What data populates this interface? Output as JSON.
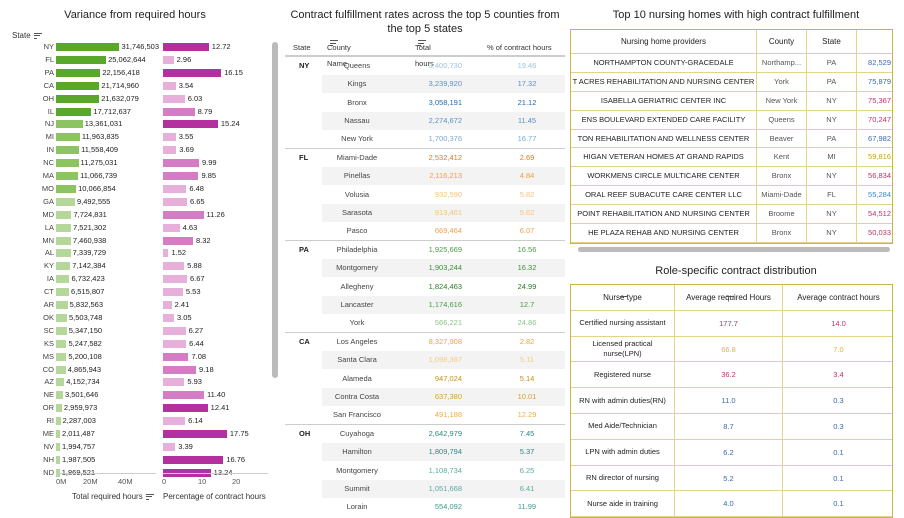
{
  "left": {
    "title": "Variance from required hours",
    "state_header": "State",
    "axis1_ticks": [
      "0M",
      "20M",
      "40M"
    ],
    "axis2_ticks": [
      "0",
      "10",
      "20"
    ],
    "axis1_title": "Total required hours",
    "axis2_title": "Percentage of contract hours",
    "rows": [
      {
        "state": "NY",
        "hours": "31,746,503",
        "pct": "12.72",
        "h": 31746503,
        "p": 12.72
      },
      {
        "state": "FL",
        "hours": "25,062,644",
        "pct": "2.96",
        "h": 25062644,
        "p": 2.96
      },
      {
        "state": "PA",
        "hours": "22,156,418",
        "pct": "16.15",
        "h": 22156418,
        "p": 16.15
      },
      {
        "state": "CA",
        "hours": "21,714,960",
        "pct": "3.54",
        "h": 21714960,
        "p": 3.54
      },
      {
        "state": "OH",
        "hours": "21,632,079",
        "pct": "6.03",
        "h": 21632079,
        "p": 6.03
      },
      {
        "state": "IL",
        "hours": "17,712,637",
        "pct": "8.79",
        "h": 17712637,
        "p": 8.79
      },
      {
        "state": "NJ",
        "hours": "13,361,031",
        "pct": "15.24",
        "h": 13361031,
        "p": 15.24
      },
      {
        "state": "MI",
        "hours": "11,963,835",
        "pct": "3.55",
        "h": 11963835,
        "p": 3.55
      },
      {
        "state": "IN",
        "hours": "11,558,409",
        "pct": "3.69",
        "h": 11558409,
        "p": 3.69
      },
      {
        "state": "NC",
        "hours": "11,275,031",
        "pct": "9.99",
        "h": 11275031,
        "p": 9.99
      },
      {
        "state": "MA",
        "hours": "11,066,739",
        "pct": "9.85",
        "h": 11066739,
        "p": 9.85
      },
      {
        "state": "MO",
        "hours": "10,066,854",
        "pct": "6.48",
        "h": 10066854,
        "p": 6.48
      },
      {
        "state": "GA",
        "hours": "9,492,555",
        "pct": "6.65",
        "h": 9492555,
        "p": 6.65
      },
      {
        "state": "MD",
        "hours": "7,724,831",
        "pct": "11.26",
        "h": 7724831,
        "p": 11.26
      },
      {
        "state": "LA",
        "hours": "7,521,302",
        "pct": "4.63",
        "h": 7521302,
        "p": 4.63
      },
      {
        "state": "MN",
        "hours": "7,460,938",
        "pct": "8.32",
        "h": 7460938,
        "p": 8.32
      },
      {
        "state": "AL",
        "hours": "7,339,729",
        "pct": "1.52",
        "h": 7339729,
        "p": 1.52
      },
      {
        "state": "KY",
        "hours": "7,142,384",
        "pct": "5.88",
        "h": 7142384,
        "p": 5.88
      },
      {
        "state": "IA",
        "hours": "6,732,423",
        "pct": "6.67",
        "h": 6732423,
        "p": 6.67
      },
      {
        "state": "CT",
        "hours": "6,515,807",
        "pct": "5.53",
        "h": 6515807,
        "p": 5.53
      },
      {
        "state": "AR",
        "hours": "5,832,563",
        "pct": "2.41",
        "h": 5832563,
        "p": 2.41
      },
      {
        "state": "OK",
        "hours": "5,503,748",
        "pct": "3.05",
        "h": 5503748,
        "p": 3.05
      },
      {
        "state": "SC",
        "hours": "5,347,150",
        "pct": "6.27",
        "h": 5347150,
        "p": 6.27
      },
      {
        "state": "KS",
        "hours": "5,247,582",
        "pct": "6.44",
        "h": 5247582,
        "p": 6.44
      },
      {
        "state": "MS",
        "hours": "5,200,108",
        "pct": "7.08",
        "h": 5200108,
        "p": 7.08
      },
      {
        "state": "CO",
        "hours": "4,865,943",
        "pct": "9.18",
        "h": 4865943,
        "p": 9.18
      },
      {
        "state": "AZ",
        "hours": "4,152,734",
        "pct": "5.93",
        "h": 4152734,
        "p": 5.93
      },
      {
        "state": "NE",
        "hours": "3,501,646",
        "pct": "11.40",
        "h": 3501646,
        "p": 11.4
      },
      {
        "state": "OR",
        "hours": "2,959,973",
        "pct": "12.41",
        "h": 2959973,
        "p": 12.41
      },
      {
        "state": "RI",
        "hours": "2,287,003",
        "pct": "6.14",
        "h": 2287003,
        "p": 6.14
      },
      {
        "state": "ME",
        "hours": "2,011,487",
        "pct": "17.75",
        "h": 2011487,
        "p": 17.75
      },
      {
        "state": "NV",
        "hours": "1,994,757",
        "pct": "3.39",
        "h": 1994757,
        "p": 3.39
      },
      {
        "state": "NH",
        "hours": "1,987,505",
        "pct": "16.76",
        "h": 1987505,
        "p": 16.76
      },
      {
        "state": "ND",
        "hours": "1,869,521",
        "pct": "13.24",
        "h": 1869521,
        "p": 13.24
      }
    ]
  },
  "mid": {
    "title": "Contract fulfillment rates across the top 5 counties from the top 5 states",
    "headers": {
      "state": "State",
      "county": "County Name",
      "total": "Total hours",
      "pct": "% of contract hours"
    },
    "groups": [
      {
        "state": "NY",
        "rows": [
          {
            "county": "Queens",
            "total": "3,400,730",
            "pct": "19.46",
            "color": "#9cc4e0"
          },
          {
            "county": "Kings",
            "total": "3,239,920",
            "pct": "17.32",
            "color": "#5b8fc0"
          },
          {
            "county": "Bronx",
            "total": "3,058,191",
            "pct": "21.12",
            "color": "#2b6aa8"
          },
          {
            "county": "Nassau",
            "total": "2,274,672",
            "pct": "11.45",
            "color": "#5b8fc0"
          },
          {
            "county": "New York",
            "total": "1,700,376",
            "pct": "16.77",
            "color": "#7aaad2"
          }
        ]
      },
      {
        "state": "FL",
        "rows": [
          {
            "county": "Miami-Dade",
            "total": "2,532,412",
            "pct": "2.69",
            "color": "#e07a22"
          },
          {
            "county": "Pinellas",
            "total": "2,116,213",
            "pct": "4.84",
            "color": "#f0a040"
          },
          {
            "county": "Volusia",
            "total": "932,590",
            "pct": "5.82",
            "color": "#f6c27a"
          },
          {
            "county": "Sarasota",
            "total": "913,401",
            "pct": "5.62",
            "color": "#f6c27a"
          },
          {
            "county": "Pasco",
            "total": "669,464",
            "pct": "6.07",
            "color": "#eba050"
          }
        ]
      },
      {
        "state": "PA",
        "rows": [
          {
            "county": "Philadelphia",
            "total": "1,925,669",
            "pct": "16.56",
            "color": "#4a9a48"
          },
          {
            "county": "Montgomery",
            "total": "1,903,244",
            "pct": "16.32",
            "color": "#3f8f3d"
          },
          {
            "county": "Allegheny",
            "total": "1,824,463",
            "pct": "24.99",
            "color": "#2a7a2a"
          },
          {
            "county": "Lancaster",
            "total": "1,174,616",
            "pct": "12.7",
            "color": "#4a9a48"
          },
          {
            "county": "York",
            "total": "566,221",
            "pct": "24.86",
            "color": "#8bc48a"
          }
        ]
      },
      {
        "state": "CA",
        "rows": [
          {
            "county": "Los Angeles",
            "total": "8,327,908",
            "pct": "2.82",
            "color": "#e8a838"
          },
          {
            "county": "Santa Clara",
            "total": "1,098,367",
            "pct": "5.11",
            "color": "#f3cc80"
          },
          {
            "county": "Alameda",
            "total": "947,024",
            "pct": "5.14",
            "color": "#c8901a"
          },
          {
            "county": "Contra Costa",
            "total": "637,380",
            "pct": "10.01",
            "color": "#d9a030"
          },
          {
            "county": "San Francisco",
            "total": "491,188",
            "pct": "12.29",
            "color": "#e8b040"
          }
        ]
      },
      {
        "state": "OH",
        "rows": [
          {
            "county": "Cuyahoga",
            "total": "2,642,979",
            "pct": "7.45",
            "color": "#2a8a82"
          },
          {
            "county": "Hamilton",
            "total": "1,809,794",
            "pct": "5.37",
            "color": "#2a8a82"
          },
          {
            "county": "Montgomery",
            "total": "1,108,734",
            "pct": "6.25",
            "color": "#5aaaa2"
          },
          {
            "county": "Summit",
            "total": "1,051,668",
            "pct": "6.41",
            "color": "#5aaaa2"
          },
          {
            "county": "Lorain",
            "total": "554,092",
            "pct": "11.99",
            "color": "#3a9a92"
          }
        ]
      }
    ]
  },
  "rt": {
    "title": "Top 10 nursing homes with high contract fulfillment",
    "headers": {
      "provider": "Nursing home providers",
      "county": "County",
      "state": "State"
    },
    "rows": [
      {
        "provider": "NORTHAMPTON COUNTY-GRACEDALE",
        "county": "Northamp...",
        "state": "PA",
        "val": "82,529",
        "color": "#3a6aa8"
      },
      {
        "provider": "T ACRES REHABILITATION AND NURSING CENTER",
        "county": "York",
        "state": "PA",
        "val": "75,879",
        "color": "#3a6aa8"
      },
      {
        "provider": "ISABELLA GERIATRIC CENTER INC",
        "county": "New York",
        "state": "NY",
        "val": "75,367",
        "color": "#c0306a"
      },
      {
        "provider": "ENS BOULEVARD EXTENDED CARE FACILITY",
        "county": "Queens",
        "state": "NY",
        "val": "70,247",
        "color": "#c0306a"
      },
      {
        "provider": "TON REHABILITATION AND WELLNESS CENTER",
        "county": "Beaver",
        "state": "PA",
        "val": "67,982",
        "color": "#3a6aa8"
      },
      {
        "provider": "HIGAN VETERAN HOMES AT GRAND RAPIDS",
        "county": "Kent",
        "state": "MI",
        "val": "59,816",
        "color": "#c8a020"
      },
      {
        "provider": "WORKMENS CIRCLE MULTICARE CENTER",
        "county": "Bronx",
        "state": "NY",
        "val": "56,834",
        "color": "#c0306a"
      },
      {
        "provider": "ORAL REEF SUBACUTE CARE CENTER LLC",
        "county": "Miami-Dade",
        "state": "FL",
        "val": "55,284",
        "color": "#3a8ac8"
      },
      {
        "provider": "POINT REHABILITATION AND NURSING CENTER",
        "county": "Broome",
        "state": "NY",
        "val": "54,512",
        "color": "#c0306a"
      },
      {
        "provider": "HE PLAZA REHAB AND NURSING CENTER",
        "county": "Bronx",
        "state": "NY",
        "val": "50,033",
        "color": "#c0306a"
      }
    ]
  },
  "rb": {
    "title": "Role-specific contract distribution",
    "headers": {
      "type": "Nurse type",
      "req": "Average required Hours",
      "con": "Average contract hours"
    },
    "rows": [
      {
        "type": "Certified nursing assistant",
        "req": "177.7",
        "con": "14.0",
        "rc": "#c0306a",
        "cc": "#c0306a"
      },
      {
        "type": "Licensed practical nurse(LPN)",
        "req": "66.8",
        "con": "7.0",
        "rc": "#d8b840",
        "cc": "#d8b840"
      },
      {
        "type": "Registered nurse",
        "req": "36.2",
        "con": "3.4",
        "rc": "#c0306a",
        "cc": "#c0306a"
      },
      {
        "type": "RN with admin duties(RN)",
        "req": "11.0",
        "con": "0.3",
        "rc": "#3a6aa8",
        "cc": "#3a6aa8"
      },
      {
        "type": "Med Aide/Technician",
        "req": "8.7",
        "con": "0.3",
        "rc": "#3a6aa8",
        "cc": "#3a6aa8"
      },
      {
        "type": "LPN with admin duties",
        "req": "6.2",
        "con": "0.1",
        "rc": "#3a6aa8",
        "cc": "#3a6aa8"
      },
      {
        "type": "RN director of nursing",
        "req": "5.2",
        "con": "0.1",
        "rc": "#3a6aa8",
        "cc": "#3a6aa8"
      },
      {
        "type": "Nurse aide in training",
        "req": "4.0",
        "con": "0.1",
        "rc": "#3a6aa8",
        "cc": "#3a6aa8"
      }
    ]
  }
}
